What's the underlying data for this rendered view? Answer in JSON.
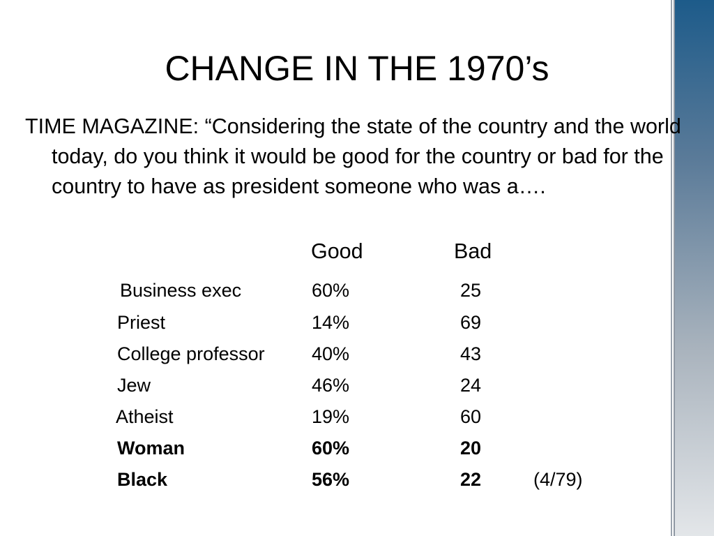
{
  "title": "CHANGE IN THE 1970’s",
  "question": "TIME MAGAZINE: “Considering the state of the country and the world today, do you think it would be good for the country or bad for the country to have as president someone who was a….",
  "headers": {
    "good": "Good",
    "bad": "Bad"
  },
  "rows": [
    {
      "label": "Business exec",
      "good": "60%",
      "bad": "25"
    },
    {
      "label": "Priest",
      "good": "14%",
      "bad": "69"
    },
    {
      "label": "College professor",
      "good": "40%",
      "bad": "43"
    },
    {
      "label": "Jew",
      "good": "46%",
      "bad": "24"
    },
    {
      "label": "Atheist",
      "good": "19%",
      "bad": "60"
    },
    {
      "label": "Woman",
      "good": "60%",
      "bad": "20"
    },
    {
      "label": "Black",
      "good": "56%",
      "bad": "22",
      "note": "(4/79)"
    }
  ],
  "colors": {
    "sidebar_top": "#1d5b8a",
    "sidebar_bottom": "#e3e6e9",
    "text": "#000000"
  }
}
